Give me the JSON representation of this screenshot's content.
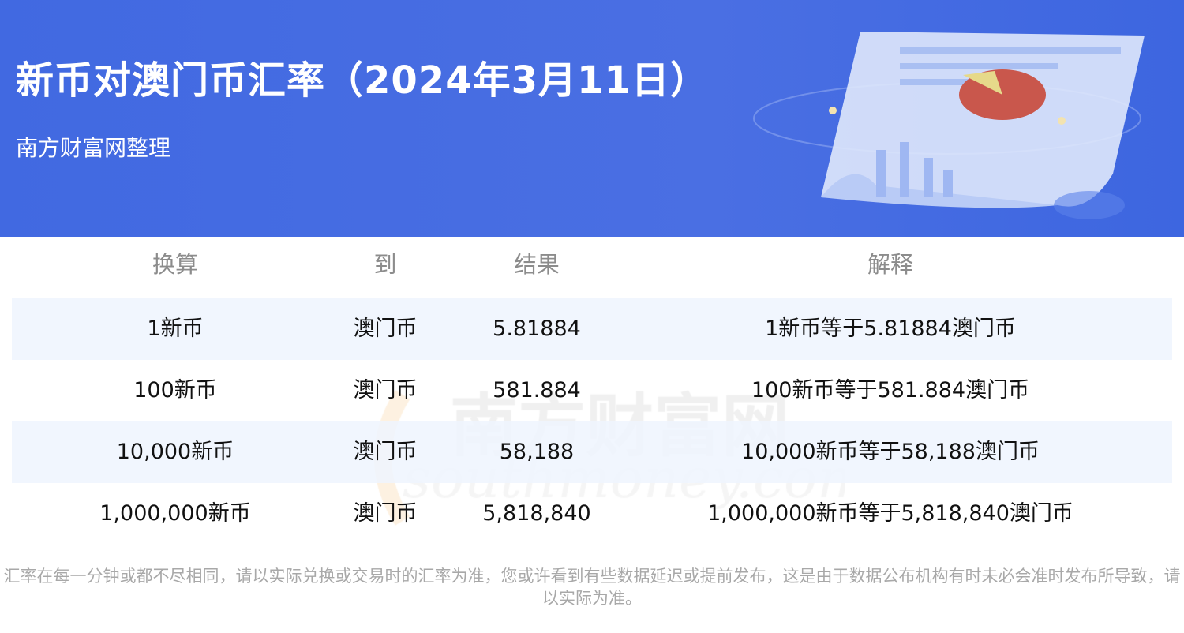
{
  "header": {
    "title": "新币对澳门币汇率（2024年3月11日）",
    "subtitle": "南方财富网整理",
    "background_color": "#4169e1"
  },
  "table": {
    "columns": [
      "换算",
      "到",
      "结果",
      "解释"
    ],
    "rows": [
      [
        "1新币",
        "澳门币",
        "5.81884",
        "1新币等于5.81884澳门币"
      ],
      [
        "100新币",
        "澳门币",
        "581.884",
        "100新币等于581.884澳门币"
      ],
      [
        "10,000新币",
        "澳门币",
        "58,188",
        "10,000新币等于58,188澳门币"
      ],
      [
        "1,000,000新币",
        "澳门币",
        "5,818,840",
        "1,000,000新币等于5,818,840澳门币"
      ]
    ],
    "alt_row_color": "#eef5fe"
  },
  "watermark": {
    "cn": "南方财富网",
    "en": "southmoney.com"
  },
  "note": "汇率在每一分钟或都不尽相同，请以实际兑换或交易时的汇率为准，您或许看到有些数据延迟或提前发布，这是由于数据公布机构有时未必会准时发布所导致，请以实际为准。"
}
